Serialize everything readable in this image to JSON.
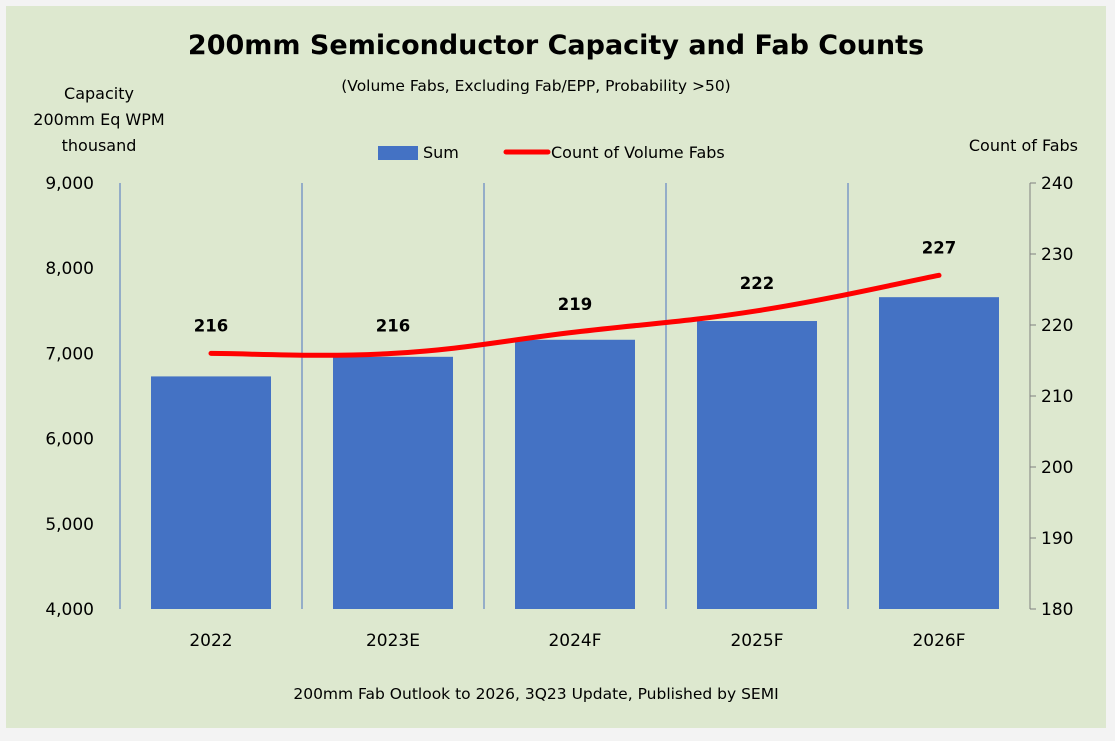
{
  "chart_data": {
    "type": "bar",
    "title": "200mm Semiconductor Capacity and Fab Counts",
    "subtitle": "(Volume Fabs, Excluding Fab/EPP, Probability >50)",
    "ylabel_left": [
      "Capacity",
      "200mm Eq WPM",
      "thousand"
    ],
    "ylabel_right": "Count of Fabs",
    "source": "200mm Fab Outlook to 2026, 3Q23 Update, Published by SEMI",
    "legend": {
      "placement": "top-center"
    },
    "categories": [
      "2022",
      "2023E",
      "2024F",
      "2025F",
      "2026F"
    ],
    "ylim_left": [
      4000,
      9000
    ],
    "yticks_left": [
      "4,000",
      "5,000",
      "6,000",
      "7,000",
      "8,000",
      "9,000"
    ],
    "ylim_right": [
      180,
      240
    ],
    "yticks_right": [
      "180",
      "190",
      "200",
      "210",
      "220",
      "230",
      "240"
    ],
    "grid": "vertical lines between categories",
    "series": [
      {
        "name": "Sum",
        "type": "bar",
        "axis": "left",
        "color": "#4472c4",
        "values": [
          6730,
          6960,
          7160,
          7380,
          7660
        ]
      },
      {
        "name": "Count of Volume Fabs",
        "type": "line",
        "axis": "right",
        "color": "#ff0000",
        "values": [
          216,
          216,
          219,
          222,
          227
        ],
        "labels": [
          "216",
          "216",
          "219",
          "222",
          "227"
        ]
      }
    ]
  }
}
